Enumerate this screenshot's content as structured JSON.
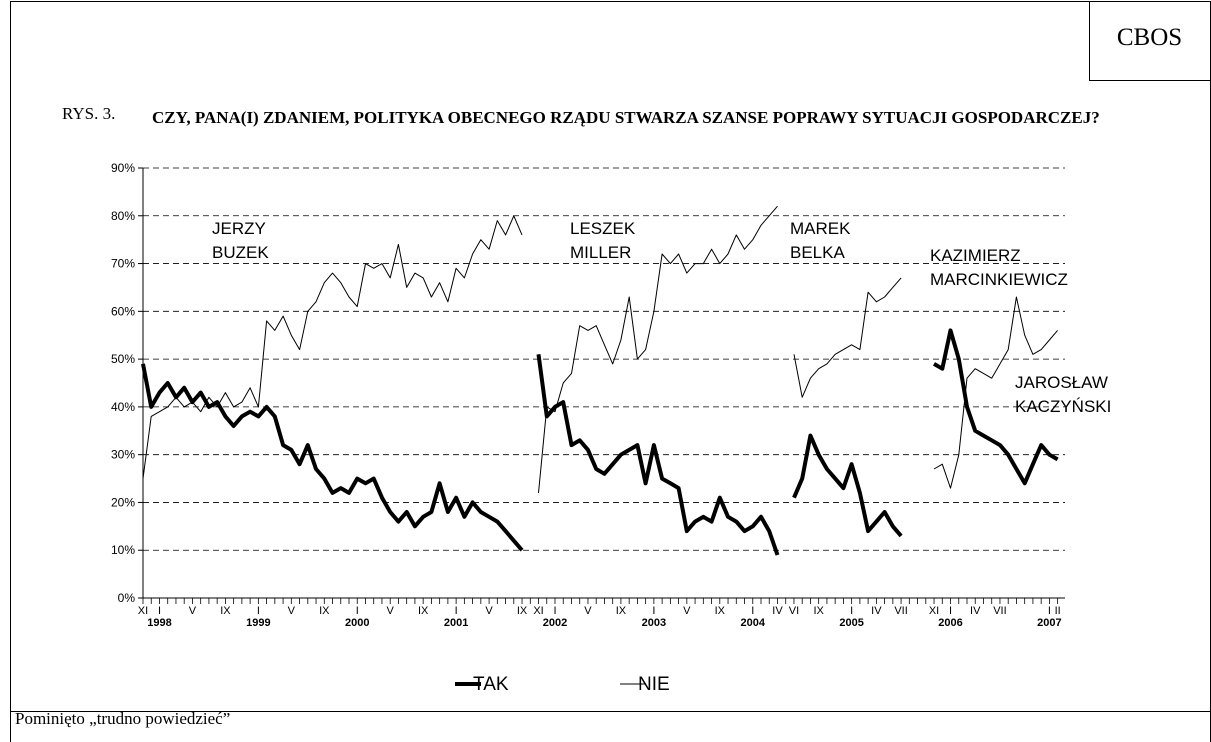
{
  "header": {
    "logo": "CBOS",
    "figure_label": "RYS. 3.",
    "title": "CZY, PANA(I) ZDANIEM, POLITYKA OBECNEGO RZĄDU STWARZA SZANSE POPRAWY SYTUACJI GOSPODARCZEJ?"
  },
  "chart_data": {
    "type": "line",
    "categories": [
      "XI",
      null,
      "I",
      null,
      null,
      null,
      "V",
      null,
      null,
      null,
      "IX",
      null,
      null,
      null,
      "I",
      null,
      null,
      null,
      "V",
      null,
      null,
      null,
      "IX",
      null,
      null,
      null,
      "I",
      null,
      null,
      null,
      "V",
      null,
      null,
      null,
      "IX",
      null,
      null,
      null,
      "I",
      null,
      null,
      null,
      "V",
      null,
      null,
      null,
      "IX",
      null,
      "XI",
      null,
      "I",
      null,
      null,
      null,
      "V",
      null,
      null,
      null,
      "IX",
      null,
      null,
      null,
      "I",
      null,
      null,
      null,
      "V",
      null,
      null,
      null,
      "IX",
      null,
      null,
      null,
      "I",
      null,
      null,
      "IV",
      null,
      "VI",
      null,
      null,
      "IX",
      null,
      null,
      null,
      "I",
      null,
      null,
      "IV",
      null,
      null,
      "VII",
      null,
      null,
      null,
      "XI",
      null,
      "I",
      null,
      null,
      "IV",
      null,
      null,
      "VII",
      null,
      null,
      null,
      null,
      null,
      "I",
      "II"
    ],
    "year_labels": [
      null,
      null,
      "1998",
      null,
      null,
      null,
      null,
      null,
      null,
      null,
      null,
      null,
      null,
      null,
      "1999",
      null,
      null,
      null,
      null,
      null,
      null,
      null,
      null,
      null,
      null,
      null,
      "2000",
      null,
      null,
      null,
      null,
      null,
      null,
      null,
      null,
      null,
      null,
      null,
      "2001",
      null,
      null,
      null,
      null,
      null,
      null,
      null,
      null,
      null,
      null,
      null,
      "2002",
      null,
      null,
      null,
      null,
      null,
      null,
      null,
      null,
      null,
      null,
      null,
      "2003",
      null,
      null,
      null,
      null,
      null,
      null,
      null,
      null,
      null,
      null,
      null,
      "2004",
      null,
      null,
      null,
      null,
      null,
      null,
      null,
      null,
      null,
      null,
      null,
      "2005",
      null,
      null,
      null,
      null,
      null,
      null,
      null,
      null,
      null,
      null,
      null,
      "2006",
      null,
      null,
      null,
      null,
      null,
      null,
      null,
      null,
      null,
      null,
      null,
      "2007",
      null
    ],
    "series": [
      {
        "name": "TAK",
        "color": "#000000",
        "values": [
          49,
          40,
          43,
          45,
          42,
          44,
          41,
          43,
          40,
          41,
          38,
          36,
          38,
          39,
          38,
          40,
          38,
          32,
          31,
          28,
          32,
          27,
          25,
          22,
          23,
          22,
          25,
          24,
          25,
          21,
          18,
          16,
          18,
          15,
          17,
          18,
          24,
          18,
          21,
          17,
          20,
          18,
          17,
          16,
          14,
          12,
          10,
          null,
          51,
          38,
          40,
          41,
          32,
          33,
          31,
          27,
          26,
          28,
          30,
          31,
          32,
          24,
          32,
          25,
          24,
          23,
          14,
          16,
          17,
          16,
          21,
          17,
          16,
          14,
          15,
          17,
          14,
          9,
          null,
          21,
          25,
          34,
          30,
          27,
          25,
          23,
          28,
          22,
          14,
          16,
          18,
          15,
          13,
          null,
          null,
          null,
          49,
          48,
          56,
          50,
          40,
          35,
          34,
          33,
          32,
          30,
          27,
          24,
          28,
          32,
          30,
          29
        ]
      },
      {
        "name": "NIE",
        "color": "#000000",
        "values": [
          25,
          38,
          39,
          40,
          42,
          40,
          41,
          39,
          42,
          40,
          43,
          40,
          41,
          44,
          40,
          58,
          56,
          59,
          55,
          52,
          60,
          62,
          66,
          68,
          66,
          63,
          61,
          70,
          69,
          70,
          67,
          74,
          65,
          68,
          67,
          63,
          66,
          62,
          69,
          67,
          72,
          75,
          73,
          79,
          76,
          80,
          76,
          null,
          22,
          40,
          39,
          45,
          47,
          57,
          56,
          57,
          53,
          49,
          54,
          63,
          50,
          52,
          60,
          72,
          70,
          72,
          68,
          70,
          70,
          73,
          70,
          72,
          76,
          73,
          75,
          78,
          80,
          82,
          null,
          51,
          42,
          46,
          48,
          49,
          51,
          52,
          53,
          52,
          64,
          62,
          63,
          65,
          67,
          null,
          null,
          null,
          27,
          28,
          23,
          30,
          46,
          48,
          47,
          46,
          49,
          52,
          63,
          55,
          51,
          52,
          54,
          56
        ]
      }
    ],
    "ylim": [
      0,
      90
    ],
    "yticks": [
      {
        "value": 0,
        "label": "0%"
      },
      {
        "value": 10,
        "label": "10%"
      },
      {
        "value": 20,
        "label": "20%"
      },
      {
        "value": 30,
        "label": "30%"
      },
      {
        "value": 40,
        "label": "40%"
      },
      {
        "value": 50,
        "label": "50%"
      },
      {
        "value": 60,
        "label": "60%"
      },
      {
        "value": 70,
        "label": "70%"
      },
      {
        "value": 80,
        "label": "80%"
      },
      {
        "value": 90,
        "label": "90%"
      }
    ],
    "grid": true,
    "annotations": [
      {
        "lines": [
          "JERZY",
          "BUZEK"
        ]
      },
      {
        "lines": [
          "LESZEK",
          "MILLER"
        ]
      },
      {
        "lines": [
          "MAREK",
          "BELKA"
        ]
      },
      {
        "lines": [
          "KAZIMIERZ",
          "MARCINKIEWICZ"
        ]
      },
      {
        "lines": [
          "JAROSŁAW",
          "KACZYŃSKI"
        ]
      }
    ]
  },
  "footer": {
    "note": "Pominięto „trudno powiedzieć”"
  }
}
